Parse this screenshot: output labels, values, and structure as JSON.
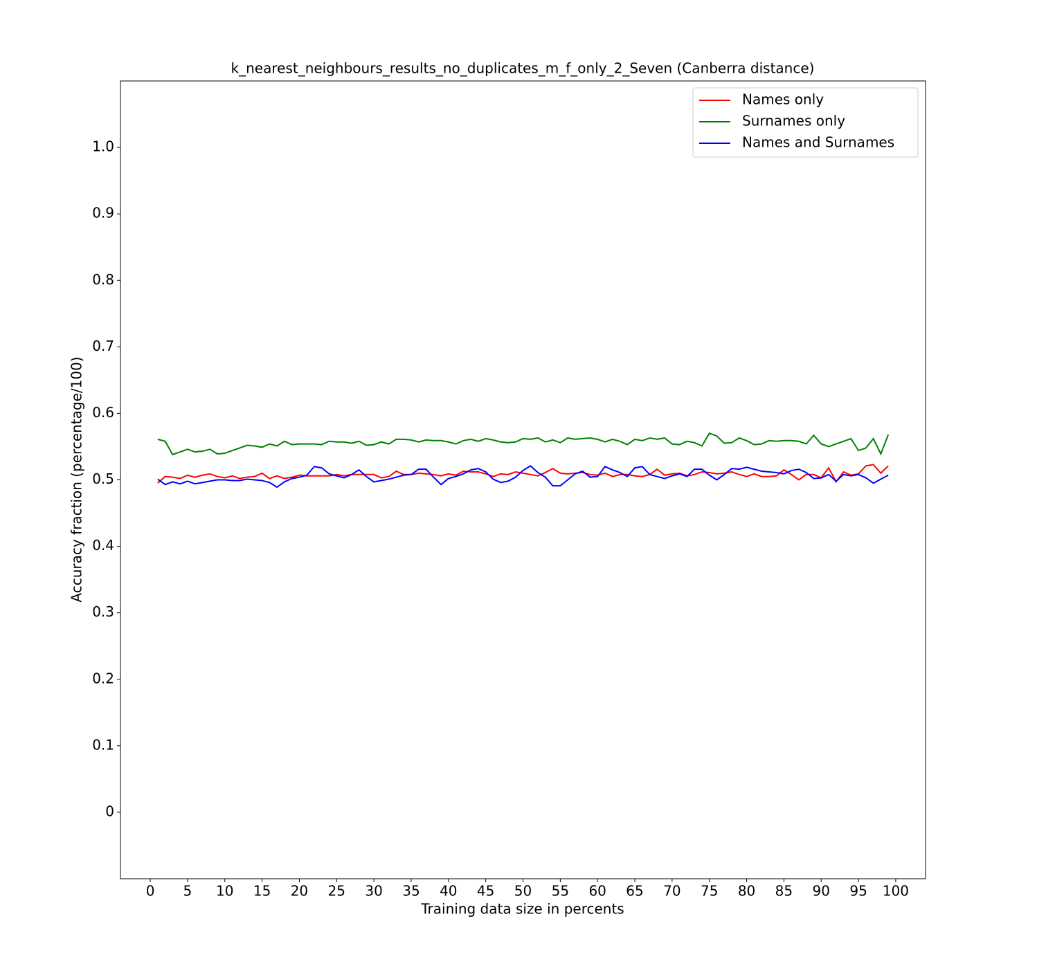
{
  "chart_data": {
    "type": "line",
    "title": "k_nearest_neighbours_results_no_duplicates_m_f_only_2_Seven (Canberra distance)",
    "x_label": "Training data size in percents",
    "y_label": "Accuracy fraction (percentage/100)",
    "x": [
      1,
      2,
      3,
      4,
      5,
      6,
      7,
      8,
      9,
      10,
      11,
      12,
      13,
      14,
      15,
      16,
      17,
      18,
      19,
      20,
      21,
      22,
      23,
      24,
      25,
      26,
      27,
      28,
      29,
      30,
      31,
      32,
      33,
      34,
      35,
      36,
      37,
      38,
      39,
      40,
      41,
      42,
      43,
      44,
      45,
      46,
      47,
      48,
      49,
      50,
      51,
      52,
      53,
      54,
      55,
      56,
      57,
      58,
      59,
      60,
      61,
      62,
      63,
      64,
      65,
      66,
      67,
      68,
      69,
      70,
      71,
      72,
      73,
      74,
      75,
      76,
      77,
      78,
      79,
      80,
      81,
      82,
      83,
      84,
      85,
      86,
      87,
      88,
      89,
      90,
      91,
      92,
      93,
      94,
      95,
      96,
      97,
      98,
      99
    ],
    "series": [
      {
        "name": "Names only",
        "color": "#ff0000",
        "values": [
          0.495,
          0.505,
          0.504,
          0.502,
          0.507,
          0.504,
          0.507,
          0.509,
          0.505,
          0.503,
          0.506,
          0.502,
          0.504,
          0.505,
          0.51,
          0.502,
          0.506,
          0.502,
          0.504,
          0.507,
          0.506,
          0.506,
          0.506,
          0.506,
          0.508,
          0.506,
          0.508,
          0.508,
          0.508,
          0.508,
          0.503,
          0.505,
          0.513,
          0.508,
          0.508,
          0.51,
          0.509,
          0.508,
          0.506,
          0.509,
          0.507,
          0.513,
          0.512,
          0.512,
          0.509,
          0.505,
          0.509,
          0.508,
          0.512,
          0.51,
          0.508,
          0.506,
          0.511,
          0.517,
          0.51,
          0.509,
          0.51,
          0.511,
          0.508,
          0.507,
          0.51,
          0.505,
          0.508,
          0.508,
          0.506,
          0.505,
          0.508,
          0.516,
          0.507,
          0.509,
          0.51,
          0.506,
          0.508,
          0.512,
          0.511,
          0.509,
          0.51,
          0.512,
          0.508,
          0.505,
          0.509,
          0.505,
          0.505,
          0.506,
          0.515,
          0.508,
          0.5,
          0.508,
          0.508,
          0.503,
          0.518,
          0.497,
          0.512,
          0.507,
          0.509,
          0.521,
          0.523,
          0.51,
          0.521
        ]
      },
      {
        "name": "Surnames only",
        "color": "#008000",
        "values": [
          0.561,
          0.558,
          0.538,
          0.542,
          0.546,
          0.542,
          0.543,
          0.546,
          0.539,
          0.54,
          0.544,
          0.548,
          0.552,
          0.551,
          0.549,
          0.554,
          0.551,
          0.558,
          0.553,
          0.554,
          0.554,
          0.554,
          0.553,
          0.558,
          0.557,
          0.557,
          0.555,
          0.558,
          0.552,
          0.553,
          0.557,
          0.554,
          0.561,
          0.561,
          0.56,
          0.557,
          0.56,
          0.559,
          0.559,
          0.557,
          0.554,
          0.559,
          0.561,
          0.558,
          0.562,
          0.56,
          0.557,
          0.556,
          0.557,
          0.562,
          0.561,
          0.563,
          0.557,
          0.56,
          0.556,
          0.563,
          0.561,
          0.562,
          0.563,
          0.561,
          0.557,
          0.561,
          0.558,
          0.553,
          0.561,
          0.559,
          0.563,
          0.561,
          0.563,
          0.554,
          0.553,
          0.558,
          0.556,
          0.551,
          0.57,
          0.566,
          0.555,
          0.556,
          0.563,
          0.559,
          0.553,
          0.554,
          0.559,
          0.558,
          0.559,
          0.559,
          0.558,
          0.554,
          0.567,
          0.554,
          0.55,
          0.554,
          0.558,
          0.562,
          0.544,
          0.548,
          0.562,
          0.539,
          0.568
        ]
      },
      {
        "name": "Names and Surnames",
        "color": "#0000ff",
        "values": [
          0.501,
          0.493,
          0.497,
          0.494,
          0.498,
          0.494,
          0.496,
          0.498,
          0.5,
          0.5,
          0.499,
          0.499,
          0.501,
          0.5,
          0.499,
          0.496,
          0.489,
          0.497,
          0.502,
          0.504,
          0.507,
          0.52,
          0.518,
          0.509,
          0.506,
          0.503,
          0.508,
          0.515,
          0.505,
          0.497,
          0.499,
          0.501,
          0.504,
          0.507,
          0.508,
          0.516,
          0.516,
          0.504,
          0.493,
          0.502,
          0.505,
          0.509,
          0.515,
          0.517,
          0.512,
          0.501,
          0.496,
          0.498,
          0.504,
          0.514,
          0.521,
          0.511,
          0.504,
          0.491,
          0.491,
          0.5,
          0.509,
          0.513,
          0.504,
          0.505,
          0.52,
          0.515,
          0.511,
          0.505,
          0.518,
          0.52,
          0.508,
          0.505,
          0.502,
          0.506,
          0.509,
          0.505,
          0.516,
          0.516,
          0.507,
          0.5,
          0.508,
          0.517,
          0.516,
          0.519,
          0.516,
          0.513,
          0.512,
          0.511,
          0.509,
          0.514,
          0.516,
          0.511,
          0.502,
          0.503,
          0.508,
          0.498,
          0.508,
          0.506,
          0.508,
          0.503,
          0.495,
          0.501,
          0.507
        ]
      }
    ],
    "xlim": [
      -4,
      104
    ],
    "ylim": [
      -0.1,
      1.1
    ],
    "xticks": [
      0,
      5,
      10,
      15,
      20,
      25,
      30,
      35,
      40,
      45,
      50,
      55,
      60,
      65,
      70,
      75,
      80,
      85,
      90,
      95,
      100
    ],
    "yticks": [
      0,
      0.1,
      0.2,
      0.3,
      0.4,
      0.5,
      0.6,
      0.7,
      0.8,
      0.9,
      {
        "value": 1,
        "label": "1.0"
      }
    ],
    "legend": "upper right"
  }
}
